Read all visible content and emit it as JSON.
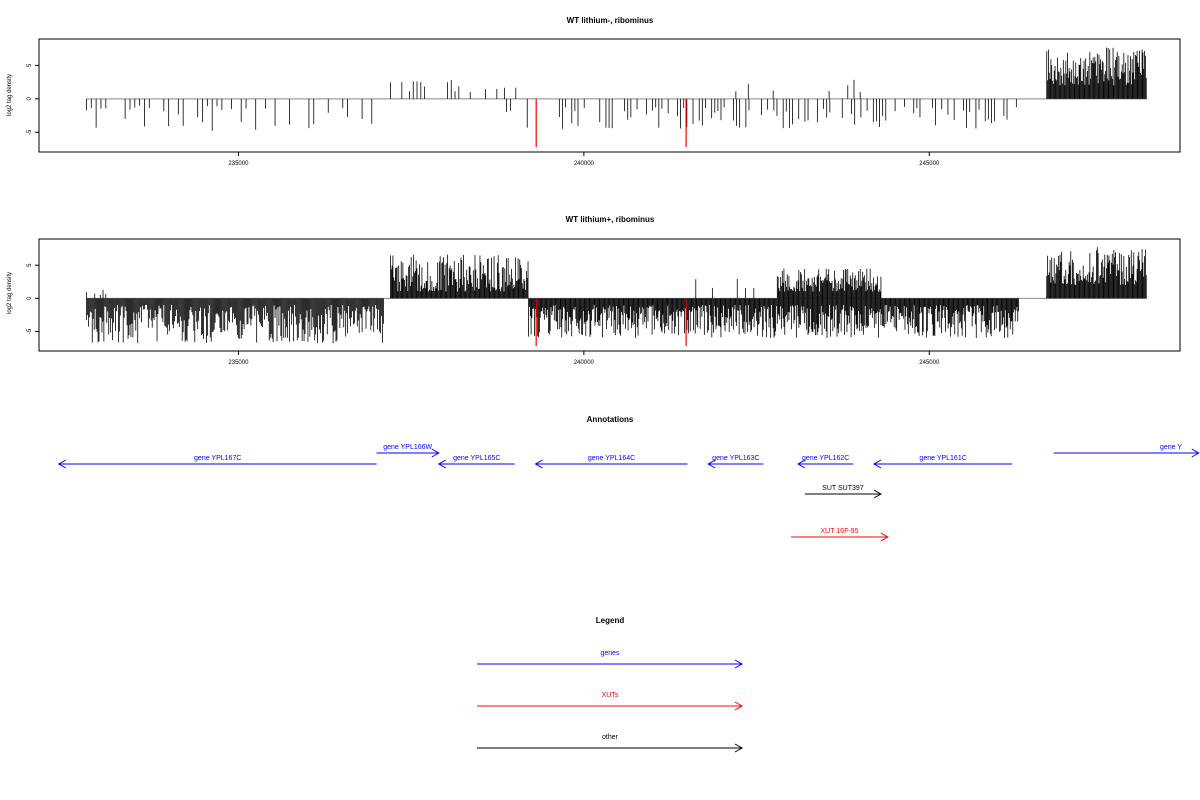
{
  "chart_data": [
    {
      "type": "bar",
      "title": "WT lithium-, ribominus",
      "ylabel": "log2 tag density",
      "xlim": [
        232200,
        248600
      ],
      "ylim": [
        -7.5,
        8.5
      ],
      "x_ticks": [
        235000,
        240000,
        245000
      ],
      "x_tick_labels": [
        "235000",
        "240000",
        "245000"
      ],
      "y_ticks": [
        -5,
        0,
        5
      ],
      "y_tick_labels": [
        "-5",
        "0",
        "5"
      ],
      "baseline": 0,
      "density_regions": [
        {
          "x_start": 232800,
          "x_end": 237100,
          "min": -5.0,
          "max": -1.0,
          "step": 70,
          "fill": 0.55
        },
        {
          "x_start": 237200,
          "x_end": 239050,
          "min": 1.0,
          "max": 3.5,
          "step": 55,
          "fill": 0.45
        },
        {
          "x_start": 238700,
          "x_end": 239200,
          "min": -4.5,
          "max": -1.2,
          "step": 60,
          "fill": 0.45
        },
        {
          "x_start": 239600,
          "x_end": 246300,
          "min": -4.5,
          "max": -1.2,
          "step": 45,
          "fill": 0.6
        },
        {
          "x_start": 242200,
          "x_end": 244100,
          "min": 1.0,
          "max": 3.0,
          "step": 90,
          "fill": 0.3
        },
        {
          "x_start": 246700,
          "x_end": 248150,
          "min": 2.0,
          "max": 7.8,
          "step": 12,
          "fill": 1.0
        }
      ],
      "highlight_spikes": [
        {
          "x": 239310,
          "y": -7.2,
          "color": "#ff0000"
        },
        {
          "x": 241480,
          "y": -7.2,
          "color": "#ff0000"
        }
      ]
    },
    {
      "type": "bar",
      "title": "WT lithium+, ribominus",
      "ylabel": "log2 tag density",
      "xlim": [
        232200,
        248600
      ],
      "ylim": [
        -7.5,
        8.5
      ],
      "x_ticks": [
        235000,
        240000,
        245000
      ],
      "x_tick_labels": [
        "235000",
        "240000",
        "245000"
      ],
      "y_ticks": [
        -5,
        0,
        5
      ],
      "y_tick_labels": [
        "-5",
        "0",
        "5"
      ],
      "baseline": 0,
      "density_regions": [
        {
          "x_start": 232800,
          "x_end": 237100,
          "min": -6.8,
          "max": -1.0,
          "step": 14,
          "fill": 1.0
        },
        {
          "x_start": 232800,
          "x_end": 233100,
          "min": 0.5,
          "max": 1.5,
          "step": 40,
          "fill": 0.8
        },
        {
          "x_start": 237200,
          "x_end": 239200,
          "min": 1.0,
          "max": 6.7,
          "step": 12,
          "fill": 1.0
        },
        {
          "x_start": 239200,
          "x_end": 246300,
          "min": -6.0,
          "max": -1.0,
          "step": 12,
          "fill": 1.0
        },
        {
          "x_start": 242800,
          "x_end": 244300,
          "min": 1.0,
          "max": 4.5,
          "step": 12,
          "fill": 1.0
        },
        {
          "x_start": 241500,
          "x_end": 242700,
          "min": 0.8,
          "max": 3.5,
          "step": 120,
          "fill": 0.3
        },
        {
          "x_start": 246700,
          "x_end": 248150,
          "min": 2.0,
          "max": 7.8,
          "step": 12,
          "fill": 1.0
        }
      ],
      "highlight_spikes": [
        {
          "x": 239310,
          "y": -7.2,
          "color": "#ff0000"
        },
        {
          "x": 241480,
          "y": -7.2,
          "color": "#ff0000"
        }
      ]
    }
  ],
  "annotations": {
    "title": "Annotations",
    "features": [
      {
        "label": "gene YPL167C",
        "start": 232400,
        "end": 237000,
        "strand": "-",
        "row": 0,
        "color": "#0000ff"
      },
      {
        "label": "gene YPL166W",
        "start": 237000,
        "end": 237900,
        "strand": "+",
        "row": -1,
        "color": "#0000ff"
      },
      {
        "label": "gene YPL165C",
        "start": 237900,
        "end": 239000,
        "strand": "-",
        "row": 0,
        "color": "#0000ff"
      },
      {
        "label": "gene YPL164C",
        "start": 239300,
        "end": 241500,
        "strand": "-",
        "row": 0,
        "color": "#0000ff"
      },
      {
        "label": "gene YPL163C",
        "start": 241800,
        "end": 242600,
        "strand": "-",
        "row": 0,
        "color": "#0000ff"
      },
      {
        "label": "gene YPL162C",
        "start": 243100,
        "end": 243900,
        "strand": "-",
        "row": 0,
        "color": "#0000ff"
      },
      {
        "label": "gene YPL161C",
        "start": 244200,
        "end": 246200,
        "strand": "-",
        "row": 0,
        "color": "#0000ff"
      },
      {
        "label": "gene Y",
        "start": 246800,
        "end": 248900,
        "strand": "+",
        "row": -1,
        "color": "#0000ff"
      },
      {
        "label": "SUT SUT397",
        "start": 243200,
        "end": 244300,
        "strand": "+",
        "row": 1,
        "color": "#000000"
      },
      {
        "label": "XUT 16F-95",
        "start": 243000,
        "end": 244400,
        "strand": "+",
        "row": 2,
        "color": "#ff0000"
      }
    ]
  },
  "legend": {
    "title": "Legend",
    "items": [
      {
        "label": "genes",
        "color": "#0000ff"
      },
      {
        "label": "XUTs",
        "color": "#ff0000"
      },
      {
        "label": "other",
        "color": "#000000"
      }
    ]
  }
}
